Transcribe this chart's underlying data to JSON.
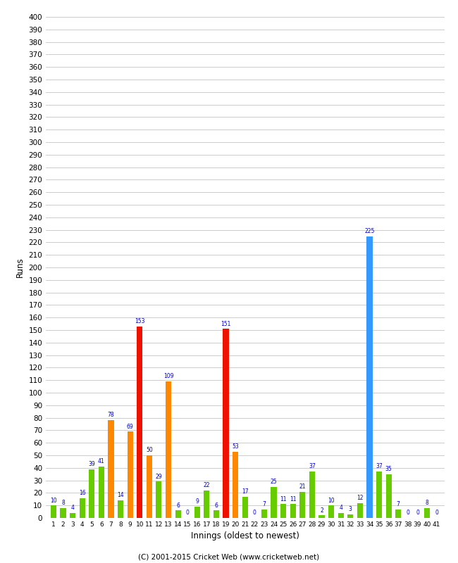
{
  "xlabel": "Innings (oldest to newest)",
  "ylabel": "Runs",
  "footer": "(C) 2001-2015 Cricket Web (www.cricketweb.net)",
  "ylim": [
    0,
    400
  ],
  "ytick_step": 10,
  "innings": [
    1,
    2,
    3,
    4,
    5,
    6,
    7,
    8,
    9,
    10,
    11,
    12,
    13,
    14,
    15,
    16,
    17,
    18,
    19,
    20,
    21,
    22,
    23,
    24,
    25,
    26,
    27,
    28,
    29,
    30,
    31,
    32,
    33,
    34,
    35,
    36,
    37,
    38,
    39,
    40,
    41
  ],
  "values": [
    10,
    8,
    4,
    16,
    39,
    41,
    78,
    14,
    69,
    153,
    50,
    29,
    109,
    6,
    0,
    9,
    22,
    6,
    151,
    53,
    17,
    0,
    7,
    25,
    11,
    11,
    21,
    37,
    2,
    10,
    4,
    3,
    12,
    225,
    37,
    35,
    7,
    0,
    0,
    8,
    0
  ],
  "colors": [
    "green",
    "green",
    "green",
    "green",
    "green",
    "green",
    "orange",
    "green",
    "orange",
    "red",
    "orange",
    "green",
    "orange",
    "green",
    "green",
    "green",
    "green",
    "green",
    "red",
    "orange",
    "green",
    "green",
    "green",
    "green",
    "green",
    "green",
    "green",
    "green",
    "green",
    "green",
    "green",
    "green",
    "green",
    "blue",
    "green",
    "green",
    "green",
    "green",
    "green",
    "green",
    "green"
  ],
  "color_map": {
    "green": "#66cc00",
    "orange": "#ff8800",
    "red": "#ee1100",
    "blue": "#3399ff"
  },
  "bg_color": "#ffffff",
  "grid_color": "#cccccc",
  "label_color": "#0000cc",
  "bar_width": 0.6,
  "fig_width": 6.5,
  "fig_height": 8.0,
  "dpi": 100
}
